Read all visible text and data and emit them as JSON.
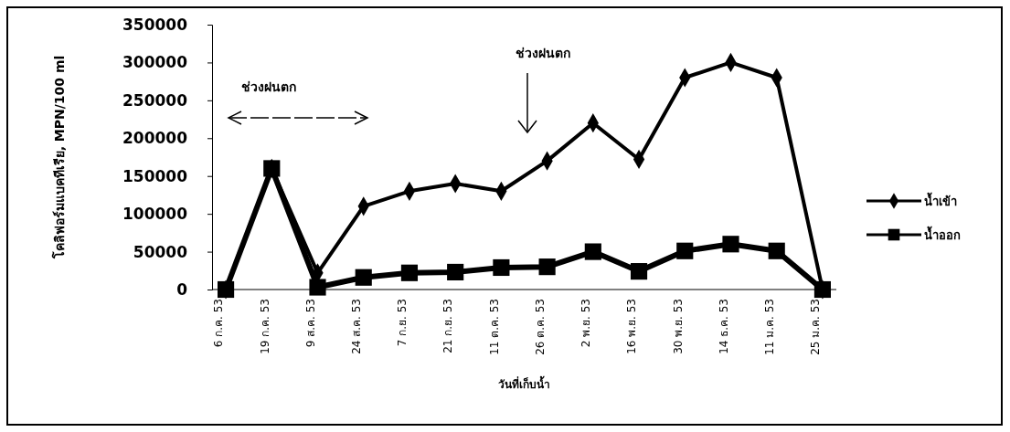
{
  "chart_data": {
    "type": "line",
    "xlabel": "วันที่เก็บน้ำ",
    "ylabel": "โคลิฟอร์มแบคทีเรีย, MPN/100 ml",
    "categories": [
      "6 ก.ค. 53",
      "19 ก.ค. 53",
      "9 ส.ค. 53",
      "24 ส.ค. 53",
      "7 ก.ย. 53",
      "21 ก.ย. 53",
      "11 ต.ค. 53",
      "26 ต.ค. 53",
      "2 พ.ย. 53",
      "16 พ.ย. 53",
      "30 พ.ย. 53",
      "14 ธ.ค. 53",
      "11 ม.ค. 53",
      "25 ม.ค. 53"
    ],
    "series": [
      {
        "name": "น้ำเข้า",
        "color": "#000000",
        "marker": "diamond",
        "values": [
          0,
          160000,
          22000,
          110000,
          130000,
          140000,
          130000,
          170000,
          220000,
          172000,
          280000,
          300000,
          280000,
          0
        ]
      },
      {
        "name": "น้ำออก",
        "color": "#000000",
        "marker": "square",
        "values": [
          0,
          160000,
          3000,
          16000,
          22000,
          23000,
          29000,
          30000,
          50000,
          24000,
          51000,
          60000,
          51000,
          0
        ]
      }
    ],
    "ylim": [
      0,
      350000
    ],
    "yticks": [
      0,
      50000,
      100000,
      150000,
      200000,
      250000,
      300000,
      350000
    ],
    "grid": false,
    "legend": "right",
    "line_style": "solid",
    "annotations": [
      "ช่วงฝนตก",
      "ช่วงฝนตก"
    ]
  }
}
